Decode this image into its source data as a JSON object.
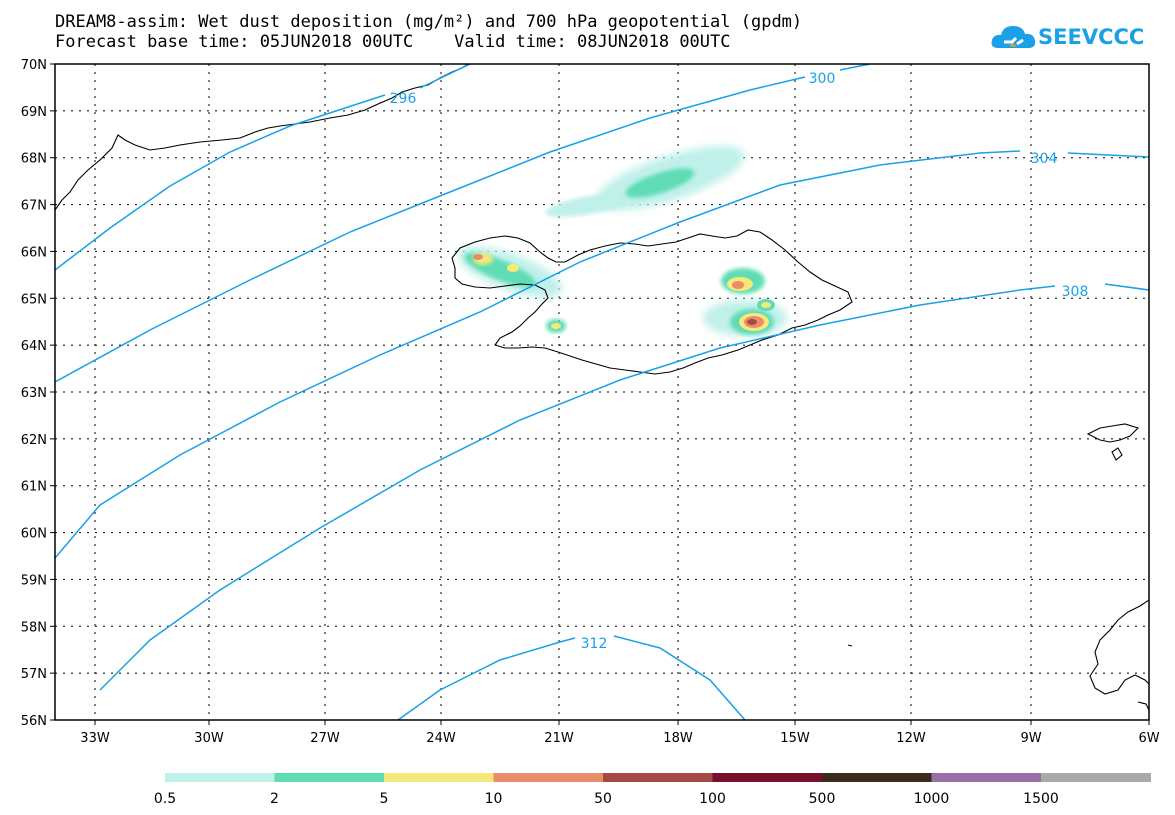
{
  "header": {
    "title_line1": "DREAM8-assim: Wet dust deposition (mg/m²) and 700 hPa geopotential (gpdm)",
    "title_line2": "Forecast base time: 05JUN2018 00UTC    Valid time: 08JUN2018 00UTC"
  },
  "logo": {
    "text": "SEEVCCC",
    "icon": "cloud-icon",
    "color": "#1aa0e6"
  },
  "map": {
    "lat_labels": [
      "70N",
      "69N",
      "68N",
      "67N",
      "66N",
      "65N",
      "64N",
      "63N",
      "62N",
      "61N",
      "60N",
      "59N",
      "58N",
      "57N",
      "56N"
    ],
    "lon_labels": [
      "33W",
      "30W",
      "27W",
      "24W",
      "21W",
      "18W",
      "15W",
      "12W",
      "9W",
      "6W"
    ],
    "contour_color": "#1aa0e6",
    "contour_labels": [
      "296",
      "300",
      "304",
      "308",
      "312"
    ]
  },
  "legend": {
    "colors": [
      "#bff0ea",
      "#5fdcb4",
      "#f5e97a",
      "#e98c6a",
      "#a24a43",
      "#7a0f2c",
      "#3c2a1c",
      "#9a6fa8",
      "#a9a9a9"
    ],
    "labels": [
      "0.5",
      "2",
      "5",
      "10",
      "50",
      "100",
      "500",
      "1000",
      "1500"
    ]
  }
}
